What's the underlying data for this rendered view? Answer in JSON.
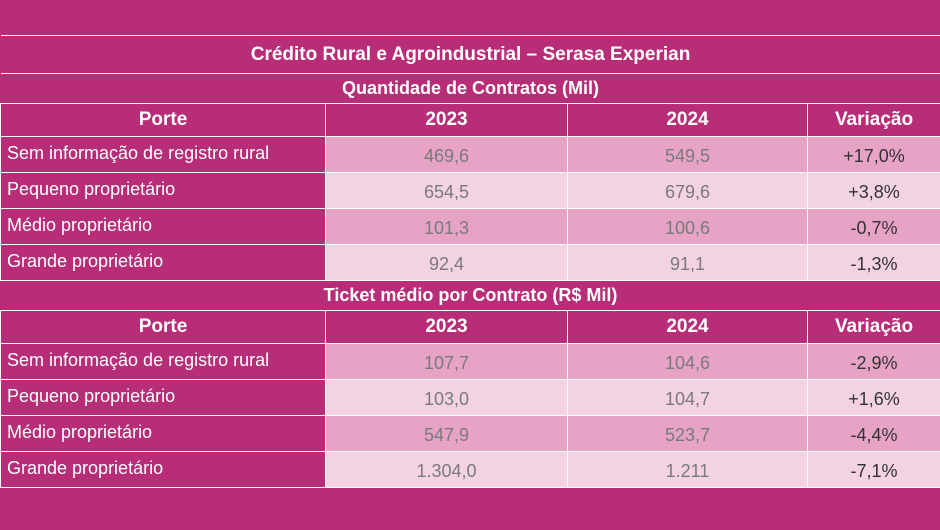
{
  "title": "Crédito Rural e Agroindustrial – Serasa Experian",
  "sections": [
    {
      "subtitle": "Quantidade de Contratos (Mil)",
      "headers": [
        "Porte",
        "2023",
        "2024",
        "Variação"
      ],
      "rows": [
        {
          "label": "Sem informação de registro rural",
          "y2023": "469,6",
          "y2024": "549,5",
          "var": "+17,0%"
        },
        {
          "label": "Pequeno proprietário",
          "y2023": "654,5",
          "y2024": "679,6",
          "var": "+3,8%"
        },
        {
          "label": "Médio proprietário",
          "y2023": "101,3",
          "y2024": "100,6",
          "var": "-0,7%"
        },
        {
          "label": "Grande proprietário",
          "y2023": "92,4",
          "y2024": "91,1",
          "var": "-1,3%"
        }
      ]
    },
    {
      "subtitle": "Ticket médio por Contrato (R$ Mil)",
      "headers": [
        "Porte",
        "2023",
        "2024",
        "Variação"
      ],
      "rows": [
        {
          "label": "Sem informação de registro rural",
          "y2023": "107,7",
          "y2024": "104,6",
          "var": "-2,9%"
        },
        {
          "label": "Pequeno proprietário",
          "y2023": "103,0",
          "y2024": "104,7",
          "var": "+1,6%"
        },
        {
          "label": "Médio proprietário",
          "y2023": "547,9",
          "y2024": "523,7",
          "var": "-4,4%"
        },
        {
          "label": "Grande proprietário",
          "y2023": "1.304,0",
          "y2024": "1.211",
          "var": "-7,1%"
        }
      ]
    }
  ],
  "colors": {
    "background": "#b72d77",
    "row_dark": "#e7a3c5",
    "row_light": "#f3d2e3"
  }
}
